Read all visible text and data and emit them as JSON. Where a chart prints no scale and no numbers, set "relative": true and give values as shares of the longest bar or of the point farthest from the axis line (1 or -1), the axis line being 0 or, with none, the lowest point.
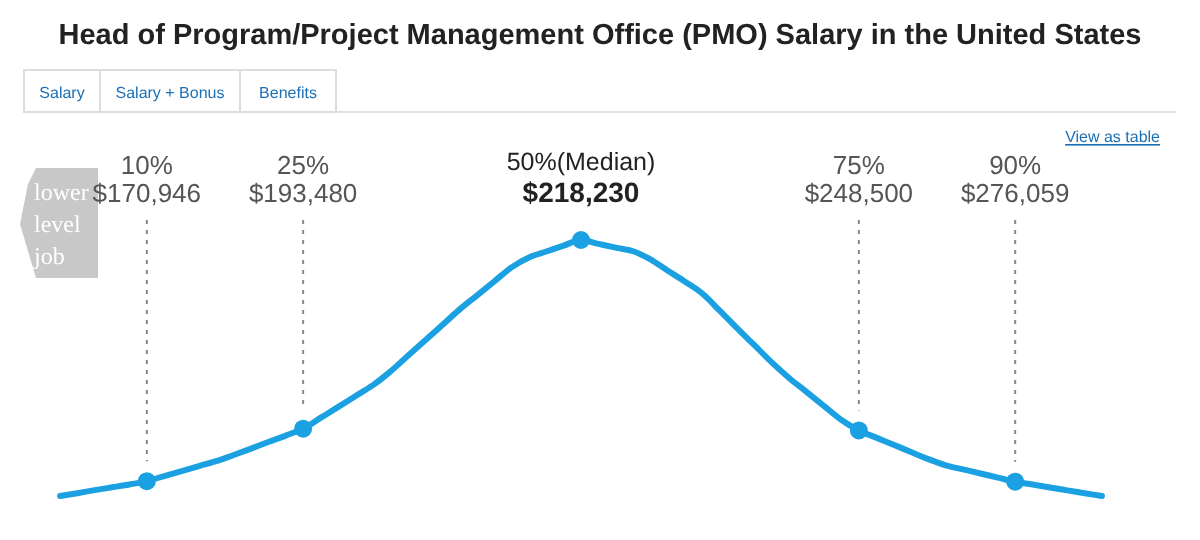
{
  "chart_data": [
    {
      "type": "other",
      "title": "Head of Program/Project Management Office (PMO) Salary in the United States",
      "categories": [
        "10%",
        "25%",
        "50%(Median)",
        "75%",
        "90%"
      ],
      "value_labels": [
        "$170,946",
        "$193,480",
        "$218,230",
        "$248,500",
        "$276,059"
      ],
      "annotations": [
        "Salary",
        "Salary + Bonus",
        "Benefits",
        "View as table",
        "lower level job"
      ]
    },
    {
      "type": "line",
      "relative": true,
      "marker": "none",
      "categories": [
        null,
        null,
        null,
        null,
        null,
        null,
        null,
        null,
        null,
        null,
        null,
        null,
        null,
        null,
        null,
        null,
        null,
        null,
        null,
        null,
        null,
        null,
        null,
        null,
        null,
        null,
        null,
        null,
        null,
        null,
        null,
        null,
        null,
        null,
        null,
        null,
        null,
        null,
        null,
        null,
        null,
        null,
        null,
        null,
        null,
        null,
        null,
        null,
        null,
        null,
        null,
        null,
        null,
        null,
        null,
        null,
        null,
        null,
        null,
        null,
        null
      ],
      "series": [
        {
          "color": "#1ba1e2",
          "values": [
            0,
            0.011,
            0.023,
            0.034,
            0.045,
            0.058,
            0.078,
            0.097,
            0.117,
            0.136,
            0.16,
            0.185,
            0.211,
            0.236,
            0.263,
            0.305,
            0.347,
            0.39,
            0.432,
            0.485,
            0.546,
            0.606,
            0.667,
            0.728,
            0.783,
            0.838,
            0.893,
            0.932,
            0.955,
            0.978,
            1,
            0.985,
            0.97,
            0.956,
            0.924,
            0.88,
            0.837,
            0.79,
            0.723,
            0.655,
            0.588,
            0.521,
            0.46,
            0.406,
            0.351,
            0.297,
            0.256,
            0.228,
            0.2,
            0.172,
            0.144,
            0.12,
            0.104,
            0.088,
            0.072,
            0.056,
            0.045,
            0.033,
            0.022,
            0.011,
            0
          ]
        }
      ]
    }
  ]
}
